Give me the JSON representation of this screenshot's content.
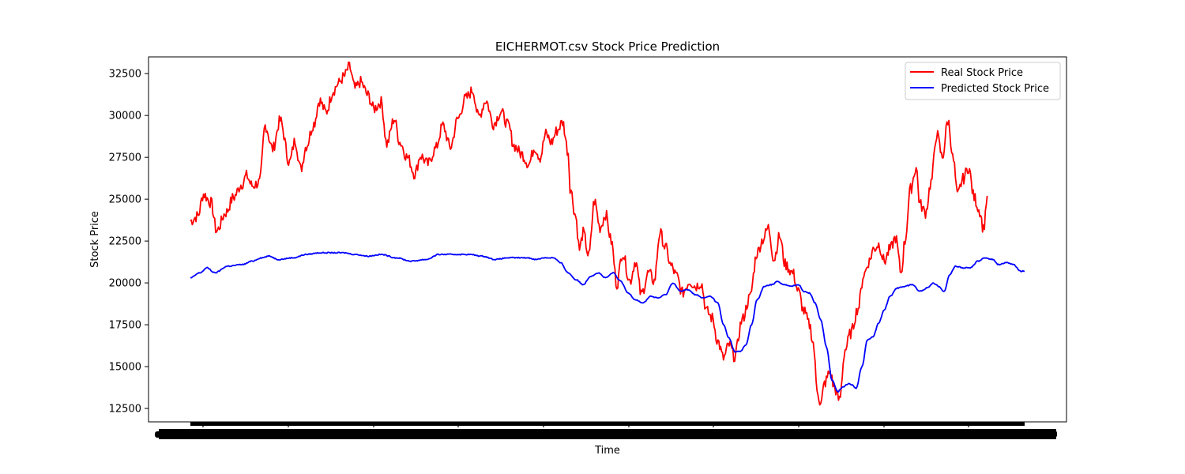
{
  "chart_data": {
    "type": "line",
    "title": "EICHERMOT.csv Stock Price Prediction",
    "xlabel": "Time",
    "ylabel": "Stock Price",
    "ylim": [
      11700,
      33500
    ],
    "yticks": [
      12500,
      15000,
      17500,
      20000,
      22500,
      25000,
      27500,
      30000,
      32500
    ],
    "grid": false,
    "legend_position": "top-right",
    "x_count": 740,
    "series": [
      {
        "name": "Real Stock Price",
        "color": "#ff0000",
        "anchors": [
          [
            0,
            23700
          ],
          [
            8,
            24000
          ],
          [
            14,
            25300
          ],
          [
            22,
            24800
          ],
          [
            28,
            23100
          ],
          [
            38,
            24200
          ],
          [
            46,
            25100
          ],
          [
            55,
            25900
          ],
          [
            60,
            26400
          ],
          [
            66,
            25800
          ],
          [
            74,
            26000
          ],
          [
            80,
            29400
          ],
          [
            88,
            28000
          ],
          [
            96,
            29700
          ],
          [
            106,
            27200
          ],
          [
            112,
            28500
          ],
          [
            118,
            26800
          ],
          [
            124,
            28200
          ],
          [
            132,
            29500
          ],
          [
            138,
            30900
          ],
          [
            145,
            30200
          ],
          [
            153,
            31500
          ],
          [
            158,
            31900
          ],
          [
            164,
            32300
          ],
          [
            170,
            32900
          ],
          [
            176,
            31600
          ],
          [
            182,
            32000
          ],
          [
            190,
            31200
          ],
          [
            196,
            30400
          ],
          [
            204,
            30800
          ],
          [
            210,
            28300
          ],
          [
            218,
            29800
          ],
          [
            224,
            28400
          ],
          [
            232,
            27500
          ],
          [
            240,
            26500
          ],
          [
            246,
            27600
          ],
          [
            254,
            27100
          ],
          [
            262,
            28000
          ],
          [
            270,
            29400
          ],
          [
            278,
            28100
          ],
          [
            286,
            29800
          ],
          [
            294,
            31000
          ],
          [
            302,
            31500
          ],
          [
            308,
            29900
          ],
          [
            316,
            30900
          ],
          [
            324,
            29500
          ],
          [
            332,
            30200
          ],
          [
            340,
            29400
          ],
          [
            346,
            28200
          ],
          [
            354,
            27700
          ],
          [
            362,
            27100
          ],
          [
            368,
            28100
          ],
          [
            374,
            27500
          ],
          [
            380,
            28900
          ],
          [
            386,
            28400
          ],
          [
            392,
            29100
          ],
          [
            398,
            29600
          ],
          [
            404,
            27800
          ],
          [
            406,
            25700
          ],
          [
            412,
            24000
          ],
          [
            416,
            22000
          ],
          [
            420,
            23000
          ],
          [
            426,
            21600
          ],
          [
            432,
            24900
          ],
          [
            438,
            23300
          ],
          [
            444,
            24100
          ],
          [
            450,
            22500
          ],
          [
            456,
            19900
          ],
          [
            462,
            21800
          ],
          [
            470,
            20100
          ],
          [
            476,
            21300
          ],
          [
            482,
            19300
          ],
          [
            490,
            20600
          ],
          [
            496,
            20100
          ],
          [
            502,
            23000
          ],
          [
            508,
            22100
          ],
          [
            514,
            21000
          ],
          [
            520,
            20400
          ],
          [
            526,
            19400
          ],
          [
            534,
            20100
          ],
          [
            540,
            19800
          ],
          [
            546,
            20000
          ],
          [
            552,
            18300
          ],
          [
            558,
            17900
          ],
          [
            564,
            16500
          ],
          [
            570,
            15500
          ],
          [
            576,
            16300
          ],
          [
            582,
            15600
          ],
          [
            590,
            17800
          ],
          [
            598,
            19100
          ],
          [
            606,
            21800
          ],
          [
            612,
            22600
          ],
          [
            618,
            23300
          ],
          [
            624,
            21400
          ],
          [
            630,
            22800
          ],
          [
            636,
            21100
          ],
          [
            644,
            20600
          ],
          [
            650,
            19500
          ],
          [
            656,
            18300
          ],
          [
            662,
            17500
          ],
          [
            666,
            16400
          ],
          [
            670,
            13700
          ],
          [
            674,
            12700
          ],
          [
            678,
            14000
          ],
          [
            684,
            14700
          ],
          [
            688,
            13800
          ],
          [
            694,
            13000
          ],
          [
            700,
            16000
          ],
          [
            706,
            17000
          ],
          [
            714,
            18500
          ],
          [
            720,
            20500
          ],
          [
            726,
            21300
          ],
          [
            730,
            22000
          ],
          [
            736,
            22300
          ],
          [
            742,
            21300
          ],
          [
            748,
            22000
          ],
          [
            754,
            22700
          ],
          [
            760,
            20600
          ],
          [
            764,
            22500
          ],
          [
            770,
            25600
          ],
          [
            776,
            26900
          ],
          [
            780,
            24700
          ],
          [
            786,
            24200
          ],
          [
            792,
            26000
          ],
          [
            798,
            28900
          ],
          [
            804,
            27500
          ],
          [
            810,
            29700
          ],
          [
            816,
            27300
          ],
          [
            820,
            25200
          ],
          [
            826,
            26200
          ],
          [
            832,
            26900
          ],
          [
            838,
            25100
          ],
          [
            844,
            24300
          ],
          [
            848,
            23200
          ],
          [
            852,
            25200
          ]
        ]
      },
      {
        "name": "Predicted Stock Price",
        "color": "#0000ff",
        "anchors": [
          [
            0,
            20300
          ],
          [
            10,
            20600
          ],
          [
            18,
            20900
          ],
          [
            26,
            20600
          ],
          [
            40,
            21000
          ],
          [
            56,
            21100
          ],
          [
            66,
            21300
          ],
          [
            76,
            21500
          ],
          [
            84,
            21600
          ],
          [
            94,
            21400
          ],
          [
            110,
            21500
          ],
          [
            124,
            21700
          ],
          [
            138,
            21800
          ],
          [
            150,
            21800
          ],
          [
            164,
            21800
          ],
          [
            176,
            21700
          ],
          [
            190,
            21600
          ],
          [
            204,
            21700
          ],
          [
            220,
            21500
          ],
          [
            236,
            21300
          ],
          [
            252,
            21400
          ],
          [
            266,
            21700
          ],
          [
            282,
            21700
          ],
          [
            298,
            21700
          ],
          [
            312,
            21600
          ],
          [
            326,
            21400
          ],
          [
            340,
            21500
          ],
          [
            350,
            21500
          ],
          [
            360,
            21500
          ],
          [
            370,
            21400
          ],
          [
            378,
            21500
          ],
          [
            388,
            21500
          ],
          [
            396,
            21200
          ],
          [
            404,
            20600
          ],
          [
            412,
            20200
          ],
          [
            420,
            19900
          ],
          [
            428,
            20400
          ],
          [
            436,
            20600
          ],
          [
            444,
            20300
          ],
          [
            452,
            20600
          ],
          [
            460,
            20100
          ],
          [
            468,
            19400
          ],
          [
            476,
            19000
          ],
          [
            484,
            18800
          ],
          [
            492,
            19200
          ],
          [
            500,
            19100
          ],
          [
            508,
            19300
          ],
          [
            516,
            20000
          ],
          [
            524,
            19500
          ],
          [
            532,
            19600
          ],
          [
            540,
            19300
          ],
          [
            548,
            19100
          ],
          [
            556,
            19200
          ],
          [
            564,
            18800
          ],
          [
            570,
            17500
          ],
          [
            576,
            16700
          ],
          [
            582,
            15900
          ],
          [
            588,
            15900
          ],
          [
            594,
            16300
          ],
          [
            600,
            17500
          ],
          [
            606,
            19000
          ],
          [
            614,
            19800
          ],
          [
            622,
            19900
          ],
          [
            628,
            20100
          ],
          [
            634,
            19900
          ],
          [
            642,
            19800
          ],
          [
            650,
            19900
          ],
          [
            656,
            19500
          ],
          [
            662,
            19400
          ],
          [
            668,
            18800
          ],
          [
            674,
            17800
          ],
          [
            680,
            16200
          ],
          [
            686,
            14200
          ],
          [
            692,
            13500
          ],
          [
            698,
            13800
          ],
          [
            704,
            14000
          ],
          [
            708,
            13900
          ],
          [
            712,
            13700
          ],
          [
            718,
            15000
          ],
          [
            724,
            16600
          ],
          [
            730,
            16800
          ],
          [
            736,
            17600
          ],
          [
            742,
            18400
          ],
          [
            748,
            19200
          ],
          [
            756,
            19700
          ],
          [
            764,
            19800
          ],
          [
            772,
            19900
          ],
          [
            780,
            19500
          ],
          [
            788,
            19700
          ],
          [
            794,
            20000
          ],
          [
            800,
            19800
          ],
          [
            806,
            19500
          ],
          [
            812,
            20500
          ],
          [
            818,
            21000
          ],
          [
            826,
            20900
          ],
          [
            834,
            20900
          ],
          [
            842,
            21300
          ],
          [
            850,
            21500
          ],
          [
            858,
            21400
          ],
          [
            864,
            21100
          ],
          [
            872,
            21200
          ],
          [
            880,
            21100
          ],
          [
            888,
            20700
          ],
          [
            892,
            20700
          ]
        ]
      }
    ],
    "xticks_count": 720
  }
}
